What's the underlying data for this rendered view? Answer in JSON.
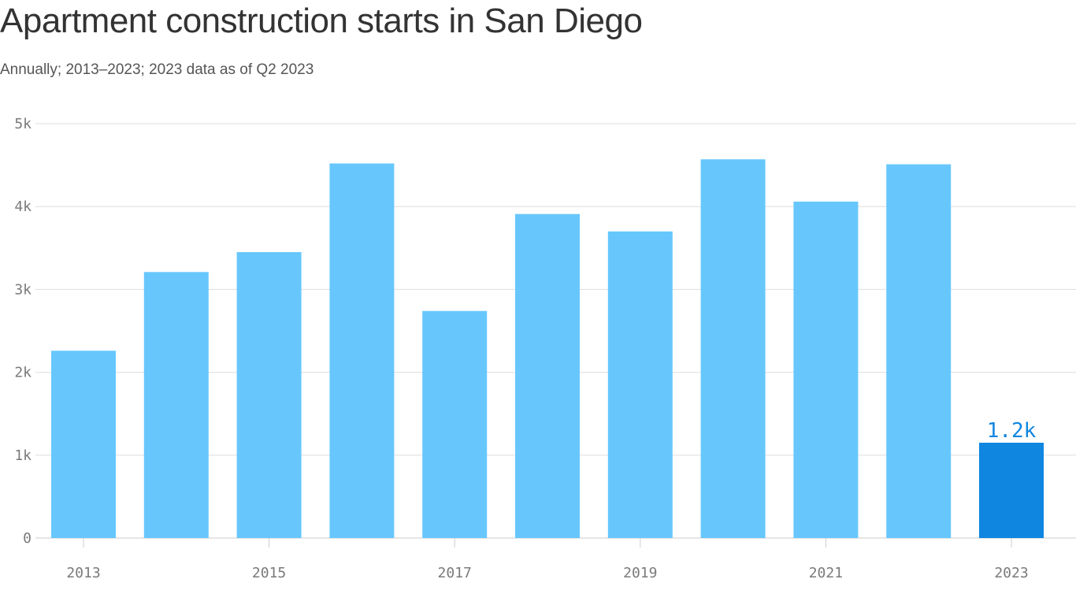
{
  "chart_data": {
    "type": "bar",
    "title": "Apartment construction starts in San Diego",
    "subtitle": "Annually; 2013–2023; 2023 data as of Q2 2023",
    "categories": [
      "2013",
      "2014",
      "2015",
      "2016",
      "2017",
      "2018",
      "2019",
      "2020",
      "2021",
      "2022",
      "2023"
    ],
    "values": [
      2260,
      3210,
      3450,
      4520,
      2740,
      3910,
      3700,
      4570,
      4060,
      4510,
      1150
    ],
    "xtick_labels": [
      "2013",
      "2015",
      "2017",
      "2019",
      "2021",
      "2023"
    ],
    "ytick_labels": [
      "0",
      "1k",
      "2k",
      "3k",
      "4k",
      "5k"
    ],
    "yticks": [
      0,
      1000,
      2000,
      3000,
      4000,
      5000
    ],
    "ylim": [
      0,
      5000
    ],
    "xlabel": "",
    "ylabel": "",
    "grid": true,
    "annotations": [
      {
        "category": "2023",
        "text": "1.2k"
      }
    ],
    "highlight_category": "2023",
    "colors": {
      "bar": "#67c7fd",
      "highlight": "#0f86e0",
      "grid": "#dddddd",
      "axis": "#cccccc",
      "tick_text": "#7a7a7a",
      "title_text": "#333333",
      "annotation_text": "#0f86e0"
    }
  }
}
